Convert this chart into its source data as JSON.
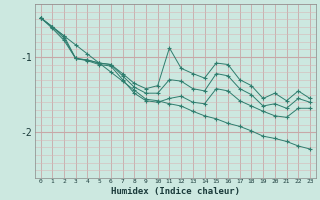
{
  "xlabel": "Humidex (Indice chaleur)",
  "background_color": "#cce8e0",
  "line_color": "#2e7d6e",
  "grid_color": "#c8a8a8",
  "x_data": [
    0,
    1,
    2,
    3,
    4,
    5,
    6,
    7,
    8,
    9,
    10,
    11,
    12,
    13,
    14,
    15,
    16,
    17,
    18,
    19,
    20,
    21,
    22,
    23
  ],
  "line1": [
    -0.48,
    -0.6,
    -0.72,
    -1.02,
    -1.04,
    -1.08,
    -1.1,
    -1.22,
    -1.35,
    -1.42,
    -1.38,
    -0.88,
    -1.15,
    -1.22,
    -1.28,
    -1.08,
    -1.1,
    -1.3,
    -1.38,
    -1.55,
    -1.48,
    -1.58,
    -1.45,
    -1.55
  ],
  "line2": [
    -0.48,
    -0.6,
    -0.75,
    -1.02,
    -1.04,
    -1.08,
    -1.1,
    -1.25,
    -1.4,
    -1.48,
    -1.48,
    -1.3,
    -1.32,
    -1.42,
    -1.45,
    -1.22,
    -1.25,
    -1.42,
    -1.5,
    -1.65,
    -1.62,
    -1.68,
    -1.55,
    -1.6
  ],
  "line3": [
    -0.48,
    -0.62,
    -0.78,
    -1.02,
    -1.05,
    -1.1,
    -1.12,
    -1.3,
    -1.48,
    -1.58,
    -1.6,
    -1.55,
    -1.52,
    -1.6,
    -1.62,
    -1.42,
    -1.45,
    -1.58,
    -1.65,
    -1.72,
    -1.78,
    -1.8,
    -1.68,
    -1.68
  ],
  "line4": [
    -0.48,
    -0.6,
    -0.72,
    -0.84,
    -0.96,
    -1.08,
    -1.2,
    -1.32,
    -1.44,
    -1.56,
    -1.58,
    -1.62,
    -1.65,
    -1.72,
    -1.78,
    -1.82,
    -1.88,
    -1.92,
    -1.98,
    -2.05,
    -2.08,
    -2.12,
    -2.18,
    -2.22
  ],
  "ylim": [
    -2.6,
    -0.3
  ],
  "yticks": [
    -2.0,
    -1.0
  ],
  "xlim": [
    -0.5,
    23.5
  ],
  "figsize": [
    3.2,
    2.0
  ],
  "dpi": 100
}
